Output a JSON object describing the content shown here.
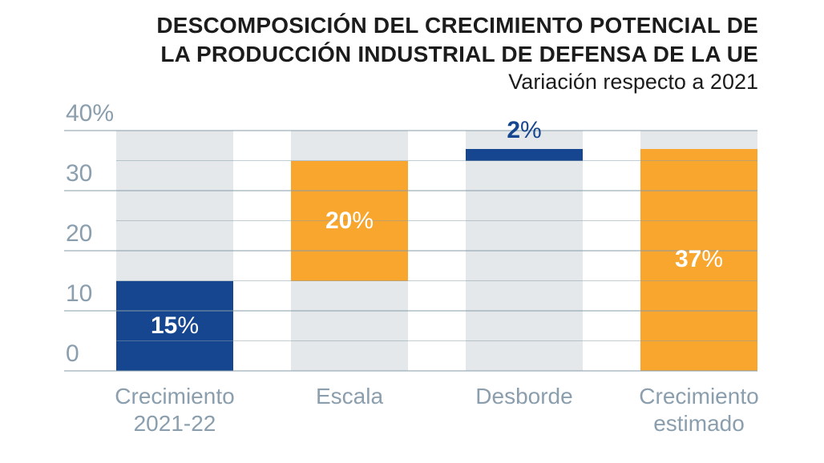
{
  "chart": {
    "title_line1": "DESCOMPOSICIÓN DEL CRECIMIENTO POTENCIAL DE",
    "title_line2": "LA PRODUCCIÓN INDUSTRIAL DE DEFENSA DE LA UE",
    "subtitle": "Variación respecto a 2021"
  },
  "chart_data": {
    "type": "bar",
    "subtype": "waterfall",
    "title": "DESCOMPOSICIÓN DEL CRECIMIENTO POTENCIAL DE LA PRODUCCIÓN INDUSTRIAL DE DEFENSA DE LA UE",
    "subtitle": "Variación respecto a 2021",
    "unit": "%",
    "baseline_note": "Variación respecto a 2021",
    "categories": [
      [
        "Crecimiento",
        "2021-22"
      ],
      [
        "Escala"
      ],
      [
        "Desborde"
      ],
      [
        "Crecimiento",
        "estimado"
      ]
    ],
    "bars": [
      {
        "category": "Crecimiento 2021-22",
        "start": 0,
        "end": 15,
        "value": 15,
        "label_number": "15",
        "label_suffix": "%",
        "color": "#15468f",
        "label_color": "#ffffff",
        "label_position": "inside"
      },
      {
        "category": "Escala",
        "start": 15,
        "end": 35,
        "value": 20,
        "label_number": "20",
        "label_suffix": "%",
        "color": "#f9a62e",
        "label_color": "#ffffff",
        "label_position": "inside"
      },
      {
        "category": "Desborde",
        "start": 35,
        "end": 37,
        "value": 2,
        "label_number": "2",
        "label_suffix": "%",
        "color": "#15468f",
        "label_color": "#15468f",
        "label_position": "above"
      },
      {
        "category": "Crecimiento estimado",
        "start": 0,
        "end": 37,
        "value": 37,
        "label_number": "37",
        "label_suffix": "%",
        "color": "#f9a62e",
        "label_color": "#ffffff",
        "label_position": "inside"
      }
    ],
    "ylim": [
      0,
      40
    ],
    "y_major_ticks": [
      {
        "value": 40,
        "label": "40%"
      },
      {
        "value": 30,
        "label": "30"
      },
      {
        "value": 20,
        "label": "20"
      },
      {
        "value": 10,
        "label": "10"
      },
      {
        "value": 0,
        "label": "0"
      }
    ],
    "y_minor_step": 5,
    "grid": "horizontal",
    "legend": "none",
    "colors": {
      "blue": "#15468f",
      "orange": "#f9a62e",
      "column_background": "#e4e8eb",
      "gridline": "rgba(136,155,170,0.5)",
      "axis_text": "#8a9eae",
      "title_text": "#1c1c1c"
    }
  }
}
